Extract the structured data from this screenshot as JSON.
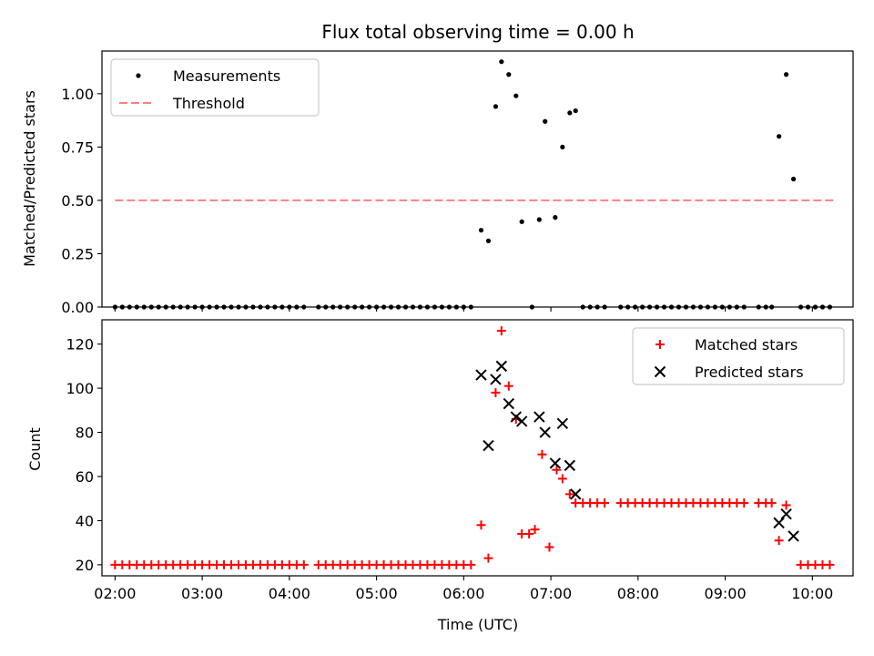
{
  "chart_data": [
    {
      "type": "scatter",
      "title": "Flux total observing time = 0.00 h",
      "ylabel": "Matched/Predicted stars",
      "xlabel": "",
      "xlim": [
        "01:51",
        "10:28"
      ],
      "ylim": [
        0,
        1.2
      ],
      "yticks": [
        0.0,
        0.25,
        0.5,
        0.75,
        1.0
      ],
      "ytick_labels": [
        "0.00",
        "0.25",
        "0.50",
        "0.75",
        "1.00"
      ],
      "xticks": [
        "02:00",
        "03:00",
        "04:00",
        "05:00",
        "06:00",
        "07:00",
        "08:00",
        "09:00",
        "10:00"
      ],
      "xtick_labels_visible": false,
      "legend": {
        "placement": "top-left",
        "entries": [
          "Measurements",
          "Threshold"
        ]
      },
      "series": [
        {
          "name": "Measurements",
          "kind": "points",
          "color": "#000000",
          "points": [
            [
              "06:12",
              0.36
            ],
            [
              "06:17",
              0.31
            ],
            [
              "06:22",
              0.94
            ],
            [
              "06:26",
              1.15
            ],
            [
              "06:31",
              1.09
            ],
            [
              "06:36",
              0.99
            ],
            [
              "06:40",
              0.4
            ],
            [
              "06:52",
              0.41
            ],
            [
              "06:56",
              0.87
            ],
            [
              "07:03",
              0.42
            ],
            [
              "07:08",
              0.75
            ],
            [
              "07:13",
              0.91
            ],
            [
              "07:17",
              0.92
            ],
            [
              "06:47",
              0.0
            ],
            [
              "09:37",
              0.8
            ],
            [
              "09:42",
              1.09
            ],
            [
              "09:47",
              0.6
            ]
          ],
          "zero_times": [
            "02:00",
            "02:05",
            "02:10",
            "02:15",
            "02:20",
            "02:25",
            "02:30",
            "02:35",
            "02:40",
            "02:45",
            "02:50",
            "02:55",
            "03:00",
            "03:05",
            "03:10",
            "03:15",
            "03:20",
            "03:25",
            "03:30",
            "03:35",
            "03:40",
            "03:45",
            "03:50",
            "03:55",
            "04:00",
            "04:05",
            "04:10",
            "04:20",
            "04:25",
            "04:30",
            "04:35",
            "04:40",
            "04:45",
            "04:50",
            "04:55",
            "05:00",
            "05:05",
            "05:10",
            "05:15",
            "05:20",
            "05:25",
            "05:30",
            "05:35",
            "05:40",
            "05:45",
            "05:50",
            "05:55",
            "06:00",
            "06:05",
            "07:22",
            "07:27",
            "07:32",
            "07:37",
            "07:48",
            "07:53",
            "07:58",
            "08:03",
            "08:08",
            "08:13",
            "08:18",
            "08:23",
            "08:28",
            "08:33",
            "08:38",
            "08:43",
            "08:48",
            "08:53",
            "08:58",
            "09:03",
            "09:08",
            "09:13",
            "09:23",
            "09:28",
            "09:32",
            "09:52",
            "09:57",
            "10:02",
            "10:07",
            "10:12"
          ]
        },
        {
          "name": "Threshold",
          "kind": "line",
          "style": "dashed",
          "color": "#ff7f7f",
          "x": [
            "02:00",
            "10:15"
          ],
          "y": [
            0.5,
            0.5
          ]
        }
      ]
    },
    {
      "type": "scatter",
      "title": "",
      "ylabel": "Count",
      "xlabel": "Time (UTC)",
      "xlim": [
        "01:51",
        "10:28"
      ],
      "ylim": [
        15,
        131
      ],
      "yticks": [
        20,
        40,
        60,
        80,
        100,
        120
      ],
      "ytick_labels": [
        "20",
        "40",
        "60",
        "80",
        "100",
        "120"
      ],
      "xticks": [
        "02:00",
        "03:00",
        "04:00",
        "05:00",
        "06:00",
        "07:00",
        "08:00",
        "09:00",
        "10:00"
      ],
      "xtick_labels": [
        "02:00",
        "03:00",
        "04:00",
        "05:00",
        "06:00",
        "07:00",
        "08:00",
        "09:00",
        "10:00"
      ],
      "legend": {
        "placement": "top-right",
        "entries": [
          "Matched stars",
          "Predicted stars"
        ]
      },
      "series": [
        {
          "name": "Matched stars",
          "marker": "plus",
          "color": "#ff0000",
          "points": [
            [
              "06:12",
              38
            ],
            [
              "06:17",
              23
            ],
            [
              "06:22",
              98
            ],
            [
              "06:26",
              126
            ],
            [
              "06:31",
              101
            ],
            [
              "06:36",
              86
            ],
            [
              "06:40",
              34
            ],
            [
              "06:45",
              34
            ],
            [
              "06:49",
              36
            ],
            [
              "06:54",
              70
            ],
            [
              "06:59",
              28
            ],
            [
              "07:04",
              63
            ],
            [
              "07:08",
              59
            ],
            [
              "07:13",
              52
            ],
            [
              "09:37",
              31
            ],
            [
              "09:42",
              47
            ]
          ],
          "flat_series": [
            {
              "value": 20,
              "times": [
                "02:00",
                "02:05",
                "02:10",
                "02:15",
                "02:20",
                "02:25",
                "02:30",
                "02:35",
                "02:40",
                "02:45",
                "02:50",
                "02:55",
                "03:00",
                "03:05",
                "03:10",
                "03:15",
                "03:20",
                "03:25",
                "03:30",
                "03:35",
                "03:40",
                "03:45",
                "03:50",
                "03:55",
                "04:00",
                "04:05",
                "04:10",
                "04:20",
                "04:25",
                "04:30",
                "04:35",
                "04:40",
                "04:45",
                "04:50",
                "04:55",
                "05:00",
                "05:05",
                "05:10",
                "05:15",
                "05:20",
                "05:25",
                "05:30",
                "05:35",
                "05:40",
                "05:45",
                "05:50",
                "05:55",
                "06:00",
                "06:05",
                "09:52",
                "09:57",
                "10:02",
                "10:07",
                "10:12"
              ]
            },
            {
              "value": 48,
              "times": [
                "07:17",
                "07:22",
                "07:27",
                "07:32",
                "07:37",
                "07:48",
                "07:53",
                "07:58",
                "08:03",
                "08:08",
                "08:13",
                "08:18",
                "08:23",
                "08:28",
                "08:33",
                "08:38",
                "08:43",
                "08:48",
                "08:53",
                "08:58",
                "09:03",
                "09:08",
                "09:13",
                "09:23",
                "09:28",
                "09:32"
              ]
            }
          ]
        },
        {
          "name": "Predicted stars",
          "marker": "x",
          "color": "#000000",
          "points": [
            [
              "06:12",
              106
            ],
            [
              "06:17",
              74
            ],
            [
              "06:22",
              104
            ],
            [
              "06:26",
              110
            ],
            [
              "06:31",
              93
            ],
            [
              "06:36",
              87
            ],
            [
              "06:40",
              85
            ],
            [
              "06:52",
              87
            ],
            [
              "06:56",
              80
            ],
            [
              "07:03",
              66
            ],
            [
              "07:08",
              84
            ],
            [
              "07:13",
              65
            ],
            [
              "07:17",
              52
            ],
            [
              "09:37",
              39
            ],
            [
              "09:42",
              43
            ],
            [
              "09:47",
              33
            ]
          ]
        }
      ]
    }
  ]
}
